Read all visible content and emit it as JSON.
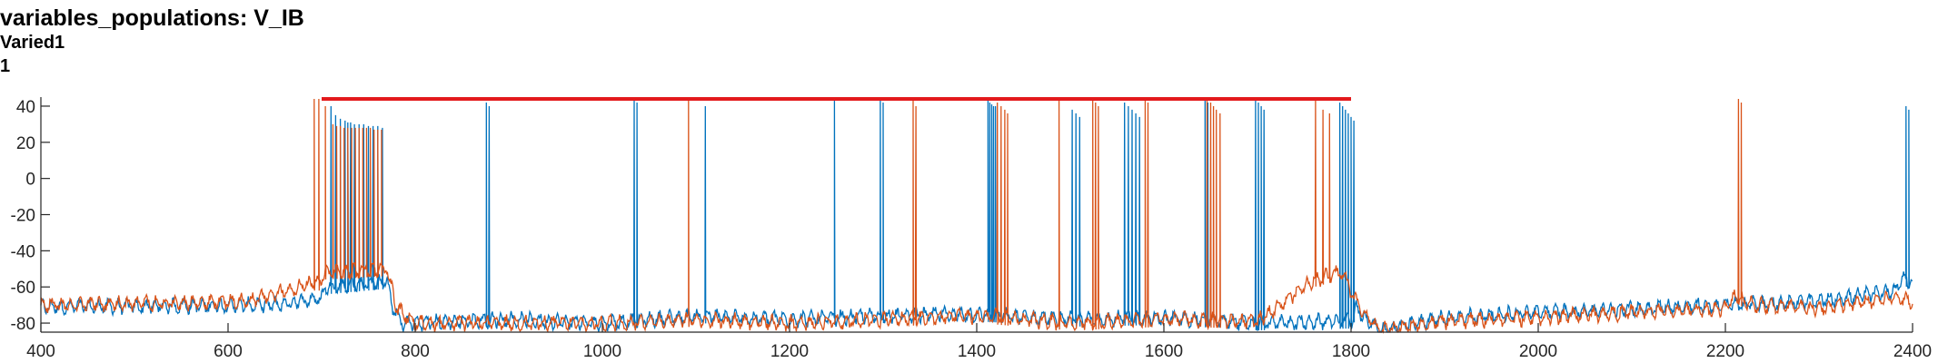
{
  "title": "variables_populations: V_IB",
  "subtitle": "Varied1",
  "subtitle2": "1",
  "chart_data": {
    "type": "line",
    "xlim": [
      400,
      2400
    ],
    "ylim": [
      -85,
      45
    ],
    "xticks": [
      400,
      600,
      800,
      1000,
      1200,
      1400,
      1600,
      1800,
      2000,
      2200,
      2400
    ],
    "yticks": [
      -80,
      -60,
      -40,
      -20,
      0,
      20,
      40
    ],
    "grid": false,
    "colors": {
      "blue": "#0072BD",
      "orange": "#D95319",
      "red": "#E31A1C"
    },
    "marker_line": {
      "x": [
        700,
        1800
      ],
      "y": 44
    },
    "series": [
      {
        "color": "blue",
        "baseline": [
          [
            400,
            -71
          ],
          [
            650,
            -70
          ],
          [
            700,
            -66
          ],
          [
            705,
            -60
          ],
          [
            770,
            -57
          ],
          [
            775,
            -70
          ],
          [
            785,
            -80
          ],
          [
            900,
            -78
          ],
          [
            1000,
            -80
          ],
          [
            1100,
            -76
          ],
          [
            1200,
            -78
          ],
          [
            1300,
            -76
          ],
          [
            1400,
            -75
          ],
          [
            1500,
            -78
          ],
          [
            1600,
            -77
          ],
          [
            1700,
            -80
          ],
          [
            1800,
            -79
          ],
          [
            1805,
            -72
          ],
          [
            1830,
            -84
          ],
          [
            1900,
            -77
          ],
          [
            2000,
            -74
          ],
          [
            2100,
            -72
          ],
          [
            2200,
            -70
          ],
          [
            2300,
            -68
          ],
          [
            2380,
            -62
          ],
          [
            2390,
            -55
          ],
          [
            2400,
            -58
          ]
        ],
        "spikes": [
          [
            710,
            40
          ],
          [
            715,
            35
          ],
          [
            720,
            33
          ],
          [
            725,
            32
          ],
          [
            728,
            31
          ],
          [
            731,
            31
          ],
          [
            735,
            30
          ],
          [
            740,
            30
          ],
          [
            745,
            30
          ],
          [
            750,
            29
          ],
          [
            755,
            29
          ],
          [
            760,
            29
          ],
          [
            765,
            28
          ],
          [
            876,
            42
          ],
          [
            879,
            40
          ],
          [
            1034,
            44
          ],
          [
            1037,
            42
          ],
          [
            1110,
            40
          ],
          [
            1248,
            44
          ],
          [
            1297,
            44
          ],
          [
            1300,
            42
          ],
          [
            1412,
            44
          ],
          [
            1414,
            42
          ],
          [
            1416,
            41
          ],
          [
            1418,
            40
          ],
          [
            1420,
            40
          ],
          [
            1502,
            38
          ],
          [
            1506,
            36
          ],
          [
            1510,
            34
          ],
          [
            1558,
            42
          ],
          [
            1562,
            40
          ],
          [
            1566,
            38
          ],
          [
            1570,
            36
          ],
          [
            1574,
            34
          ],
          [
            1644,
            44
          ],
          [
            1647,
            42
          ],
          [
            1698,
            44
          ],
          [
            1701,
            42
          ],
          [
            1704,
            40
          ],
          [
            1707,
            38
          ],
          [
            1788,
            42
          ],
          [
            1791,
            40
          ],
          [
            1794,
            38
          ],
          [
            1797,
            36
          ],
          [
            1800,
            34
          ],
          [
            1803,
            32
          ],
          [
            2393,
            40
          ],
          [
            2396,
            38
          ]
        ]
      },
      {
        "color": "orange",
        "baseline": [
          [
            400,
            -70
          ],
          [
            620,
            -68
          ],
          [
            650,
            -64
          ],
          [
            690,
            -58
          ],
          [
            700,
            -58
          ],
          [
            700,
            -52
          ],
          [
            770,
            -50
          ],
          [
            780,
            -72
          ],
          [
            800,
            -80
          ],
          [
            900,
            -80
          ],
          [
            1000,
            -80
          ],
          [
            1100,
            -78
          ],
          [
            1200,
            -80
          ],
          [
            1300,
            -78
          ],
          [
            1400,
            -76
          ],
          [
            1500,
            -80
          ],
          [
            1600,
            -78
          ],
          [
            1700,
            -79
          ],
          [
            1760,
            -56
          ],
          [
            1790,
            -52
          ],
          [
            1810,
            -72
          ],
          [
            1830,
            -84
          ],
          [
            1900,
            -79
          ],
          [
            2000,
            -77
          ],
          [
            2100,
            -74
          ],
          [
            2200,
            -72
          ],
          [
            2210,
            -65
          ],
          [
            2230,
            -70
          ],
          [
            2300,
            -72
          ],
          [
            2380,
            -66
          ],
          [
            2400,
            -68
          ]
        ],
        "spikes": [
          [
            692,
            44
          ],
          [
            697,
            44
          ],
          [
            704,
            40
          ],
          [
            712,
            30
          ],
          [
            716,
            29
          ],
          [
            720,
            29
          ],
          [
            724,
            28
          ],
          [
            728,
            28
          ],
          [
            732,
            28
          ],
          [
            736,
            28
          ],
          [
            740,
            28
          ],
          [
            744,
            28
          ],
          [
            748,
            28
          ],
          [
            752,
            28
          ],
          [
            756,
            27
          ],
          [
            760,
            27
          ],
          [
            764,
            27
          ],
          [
            1092,
            44
          ],
          [
            1332,
            44
          ],
          [
            1335,
            40
          ],
          [
            1422,
            42
          ],
          [
            1426,
            40
          ],
          [
            1430,
            38
          ],
          [
            1433,
            36
          ],
          [
            1488,
            44
          ],
          [
            1524,
            44
          ],
          [
            1527,
            42
          ],
          [
            1530,
            40
          ],
          [
            1580,
            44
          ],
          [
            1583,
            42
          ],
          [
            1646,
            44
          ],
          [
            1650,
            42
          ],
          [
            1653,
            40
          ],
          [
            1656,
            38
          ],
          [
            1660,
            36
          ],
          [
            1762,
            44
          ],
          [
            1770,
            38
          ],
          [
            1777,
            36
          ],
          [
            2214,
            44
          ],
          [
            2217,
            42
          ]
        ]
      }
    ]
  }
}
